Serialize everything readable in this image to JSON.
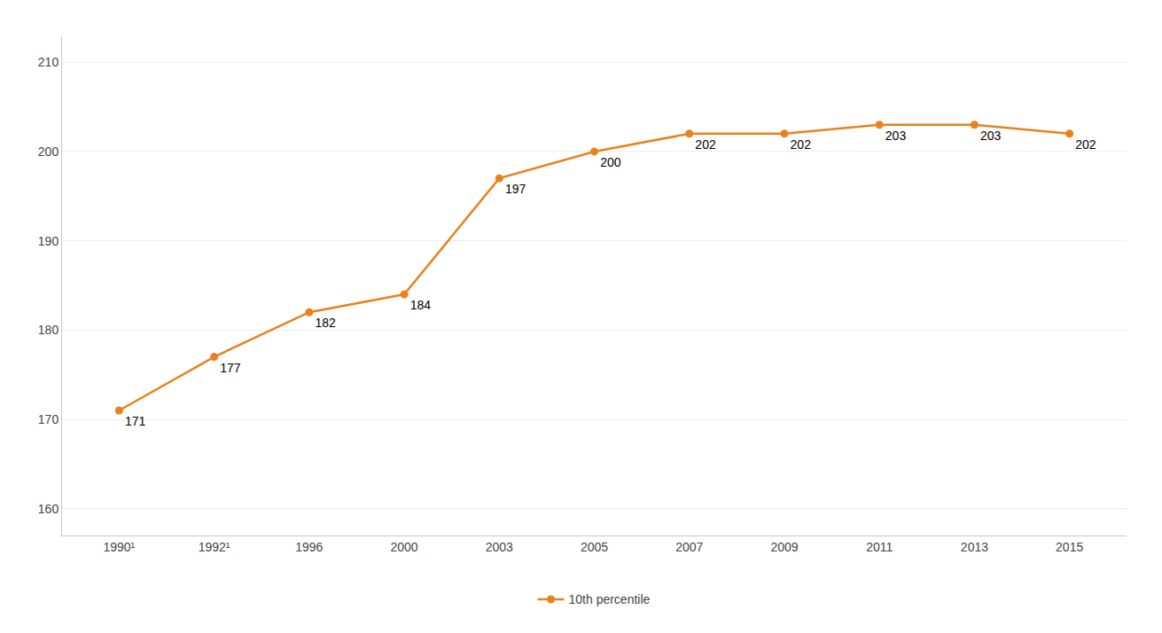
{
  "chart_data": {
    "type": "line",
    "categories": [
      "1990¹",
      "1992¹",
      "1996",
      "2000",
      "2003",
      "2005",
      "2007",
      "2009",
      "2011",
      "2013",
      "2015"
    ],
    "series": [
      {
        "name": "10th percentile",
        "color": "#E8821E",
        "marker": "circle",
        "values": [
          171,
          177,
          182,
          184,
          197,
          200,
          202,
          202,
          203,
          203,
          202
        ]
      }
    ],
    "ylim": [
      157,
      213
    ],
    "yticks": [
      160,
      170,
      180,
      190,
      200,
      210
    ],
    "grid": true,
    "legend": "bottom",
    "data_labels": true
  }
}
